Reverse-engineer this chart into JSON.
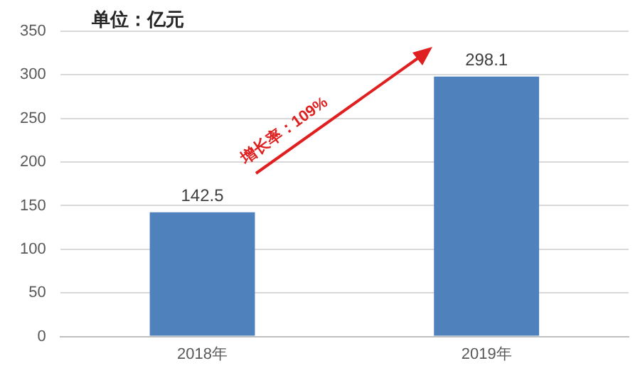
{
  "chart_data": {
    "type": "bar",
    "subtitle": "单位：亿元",
    "categories": [
      "2018年",
      "2019年"
    ],
    "values": [
      142.5,
      298.1
    ],
    "color": "#4f81bd",
    "ylim": [
      0,
      350
    ],
    "yticks": [
      0,
      50,
      100,
      150,
      200,
      250,
      300,
      350
    ],
    "grid": "y",
    "data_labels": true,
    "legend": false,
    "annotations": [
      "增长率：109%"
    ]
  }
}
